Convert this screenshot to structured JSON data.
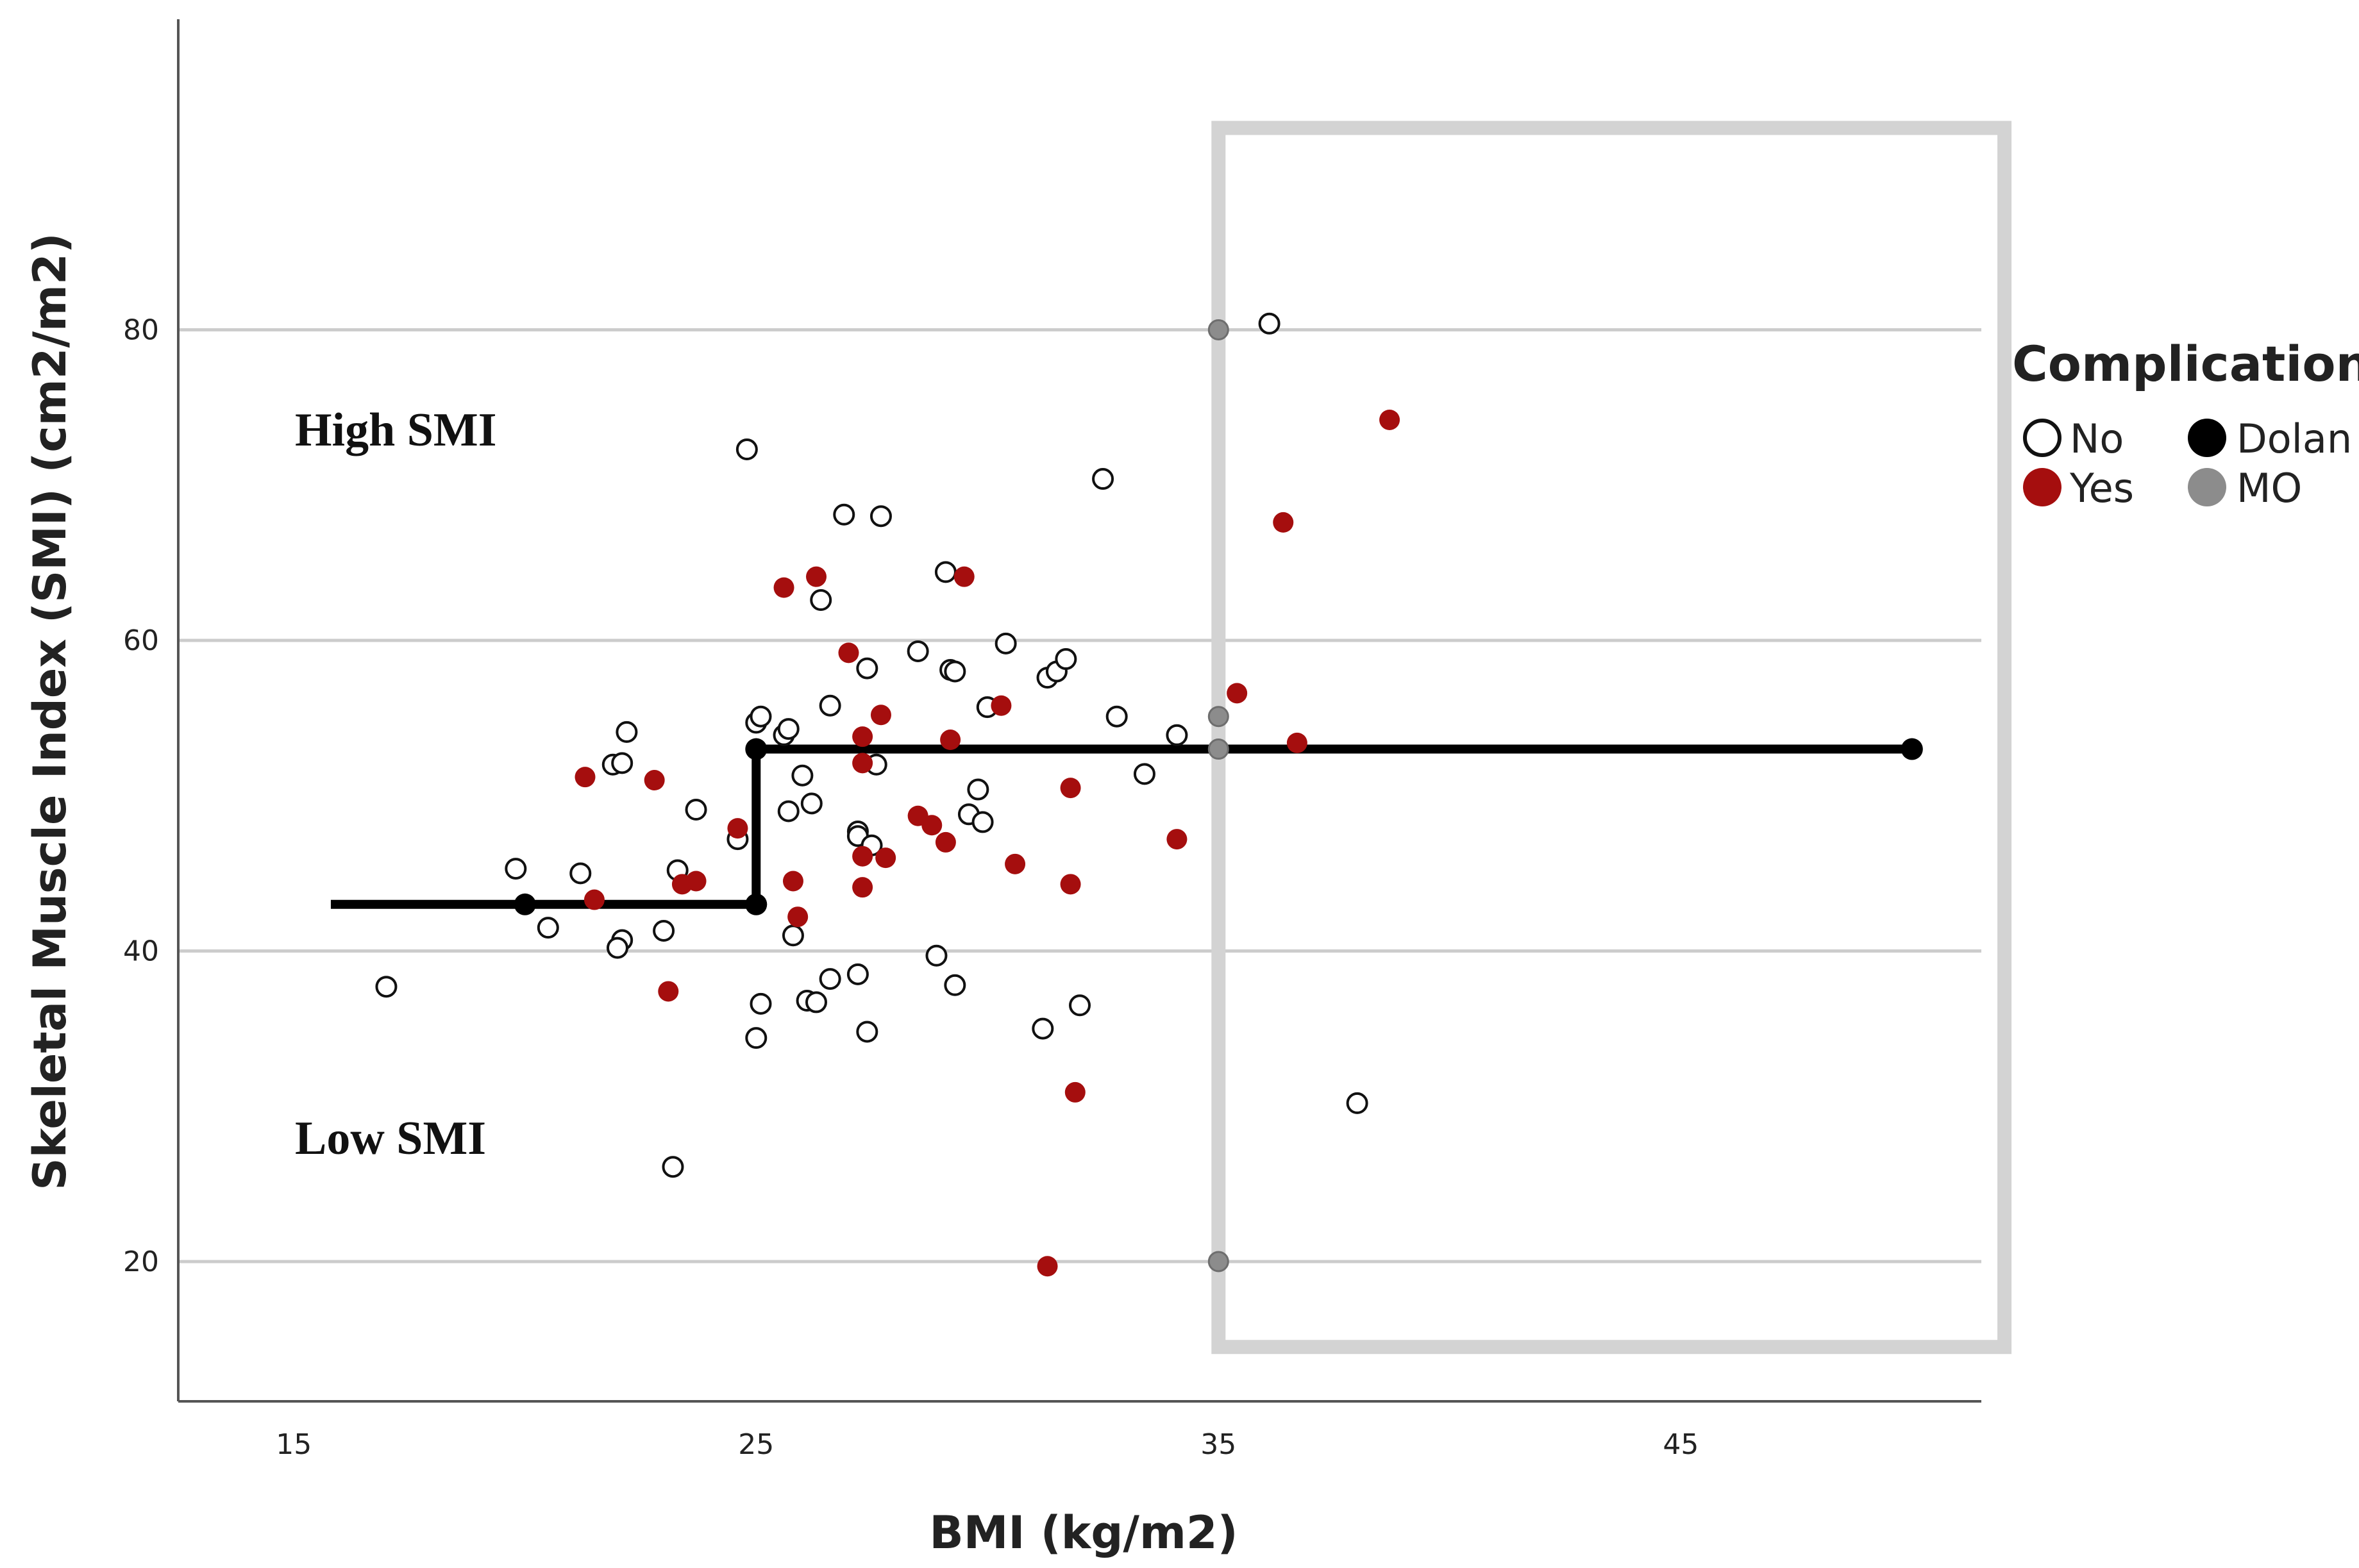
{
  "chart_data": {
    "type": "scatter",
    "xlabel": "BMI (kg/m2)",
    "ylabel": "Skeletal Muscle Index (SMI) (cm2/m2)",
    "xlim": [
      12.5,
      51.5
    ],
    "ylim": [
      11,
      100
    ],
    "x_ticks": [
      15,
      25,
      35,
      45
    ],
    "y_ticks": [
      20,
      40,
      60,
      80
    ],
    "grid": "horizontal",
    "annotations": [
      "High SMI",
      "Low SMI"
    ],
    "legend": {
      "title": "Complication",
      "placement": "right",
      "entries": [
        {
          "label": "No",
          "style": "open-circle"
        },
        {
          "label": "Dolan",
          "style": "black-filled"
        },
        {
          "label": "Yes",
          "style": "red-filled"
        },
        {
          "label": "MO",
          "style": "gray-filled"
        }
      ]
    },
    "colors": {
      "yes": "#a50e0e",
      "no_edge": "#111111",
      "dolan": "#000000",
      "mo": "#8c8c8c",
      "grid": "#cccccc",
      "box": "#d3d3d3",
      "axis": "#555555"
    },
    "highlight_box": {
      "x_range": [
        35,
        52
      ],
      "y_range": [
        14.5,
        93
      ]
    },
    "series": [
      {
        "name": "No",
        "points": [
          [
            17,
            37.7
          ],
          [
            19.8,
            45.3
          ],
          [
            20.5,
            41.5
          ],
          [
            21.2,
            45
          ],
          [
            21.9,
            52
          ],
          [
            22.1,
            52.1
          ],
          [
            22.2,
            54.1
          ],
          [
            22.1,
            40.7
          ],
          [
            22,
            40.2
          ],
          [
            23,
            41.3
          ],
          [
            23.3,
            45.2
          ],
          [
            23.2,
            26.1
          ],
          [
            23.7,
            49.1
          ],
          [
            24.6,
            47.2
          ],
          [
            24.8,
            72.3
          ],
          [
            25.0,
            54.7
          ],
          [
            25.1,
            55.1
          ],
          [
            25.0,
            34.4
          ],
          [
            25.1,
            36.6
          ],
          [
            25.6,
            53.9
          ],
          [
            25.7,
            54.3
          ],
          [
            25.7,
            49
          ],
          [
            25.8,
            41
          ],
          [
            26,
            51.3
          ],
          [
            26.1,
            36.8
          ],
          [
            26.2,
            49.5
          ],
          [
            26.3,
            36.7
          ],
          [
            26.4,
            62.6
          ],
          [
            26.6,
            38.2
          ],
          [
            26.6,
            55.8
          ],
          [
            26.9,
            68.1
          ],
          [
            27.2,
            38.5
          ],
          [
            27.2,
            47.7
          ],
          [
            27.2,
            47.4
          ],
          [
            27.4,
            58.2
          ],
          [
            27.4,
            34.8
          ],
          [
            27.5,
            46.8
          ],
          [
            27.6,
            52
          ],
          [
            27.7,
            68
          ],
          [
            28.5,
            59.3
          ],
          [
            28.9,
            39.7
          ],
          [
            29.1,
            64.4
          ],
          [
            29.2,
            58.1
          ],
          [
            29.3,
            58
          ],
          [
            29.3,
            37.8
          ],
          [
            29.6,
            48.8
          ],
          [
            29.8,
            50.4
          ],
          [
            29.9,
            48.3
          ],
          [
            30.0,
            55.7
          ],
          [
            30.4,
            59.8
          ],
          [
            31.2,
            35.0
          ],
          [
            31.3,
            57.6
          ],
          [
            31.5,
            58
          ],
          [
            31.7,
            58.8
          ],
          [
            32.0,
            36.5
          ],
          [
            32.5,
            70.4
          ],
          [
            32.8,
            55.1
          ],
          [
            33.4,
            51.4
          ],
          [
            34.1,
            53.9
          ],
          [
            36.1,
            80.4
          ],
          [
            38.0,
            30.2
          ]
        ]
      },
      {
        "name": "Yes",
        "points": [
          [
            21.3,
            51.2
          ],
          [
            21.5,
            43.3
          ],
          [
            22.8,
            51
          ],
          [
            23.1,
            37.4
          ],
          [
            23.4,
            44.3
          ],
          [
            23.7,
            44.5
          ],
          [
            24.6,
            47.9
          ],
          [
            25.6,
            63.4
          ],
          [
            25.8,
            44.5
          ],
          [
            25.9,
            42.2
          ],
          [
            26.3,
            64.1
          ],
          [
            27.0,
            59.2
          ],
          [
            27.3,
            46.1
          ],
          [
            27.3,
            53.8
          ],
          [
            27.3,
            52.1
          ],
          [
            27.3,
            44.1
          ],
          [
            27.7,
            55.2
          ],
          [
            27.8,
            46
          ],
          [
            28.5,
            48.7
          ],
          [
            28.8,
            48.1
          ],
          [
            29.1,
            47
          ],
          [
            29.2,
            53.6
          ],
          [
            29.5,
            64.1
          ],
          [
            30.3,
            55.8
          ],
          [
            30.6,
            45.6
          ],
          [
            31.3,
            19.7
          ],
          [
            31.8,
            50.5
          ],
          [
            31.8,
            44.3
          ],
          [
            31.9,
            30.9
          ],
          [
            34.1,
            47.2
          ],
          [
            35.4,
            56.6
          ],
          [
            36.4,
            67.6
          ],
          [
            36.7,
            53.4
          ],
          [
            38.7,
            74.2
          ]
        ]
      },
      {
        "name": "MO",
        "points": [
          [
            35,
            80
          ],
          [
            35,
            55.1
          ],
          [
            35,
            53
          ],
          [
            35,
            20
          ]
        ]
      },
      {
        "name": "Dolan",
        "points": [
          [
            20,
            43
          ],
          [
            25,
            43
          ],
          [
            25,
            53
          ],
          [
            50,
            53
          ]
        ],
        "line": [
          [
            15.8,
            43
          ],
          [
            25,
            43
          ],
          [
            25,
            53
          ],
          [
            50,
            53
          ]
        ]
      }
    ]
  }
}
